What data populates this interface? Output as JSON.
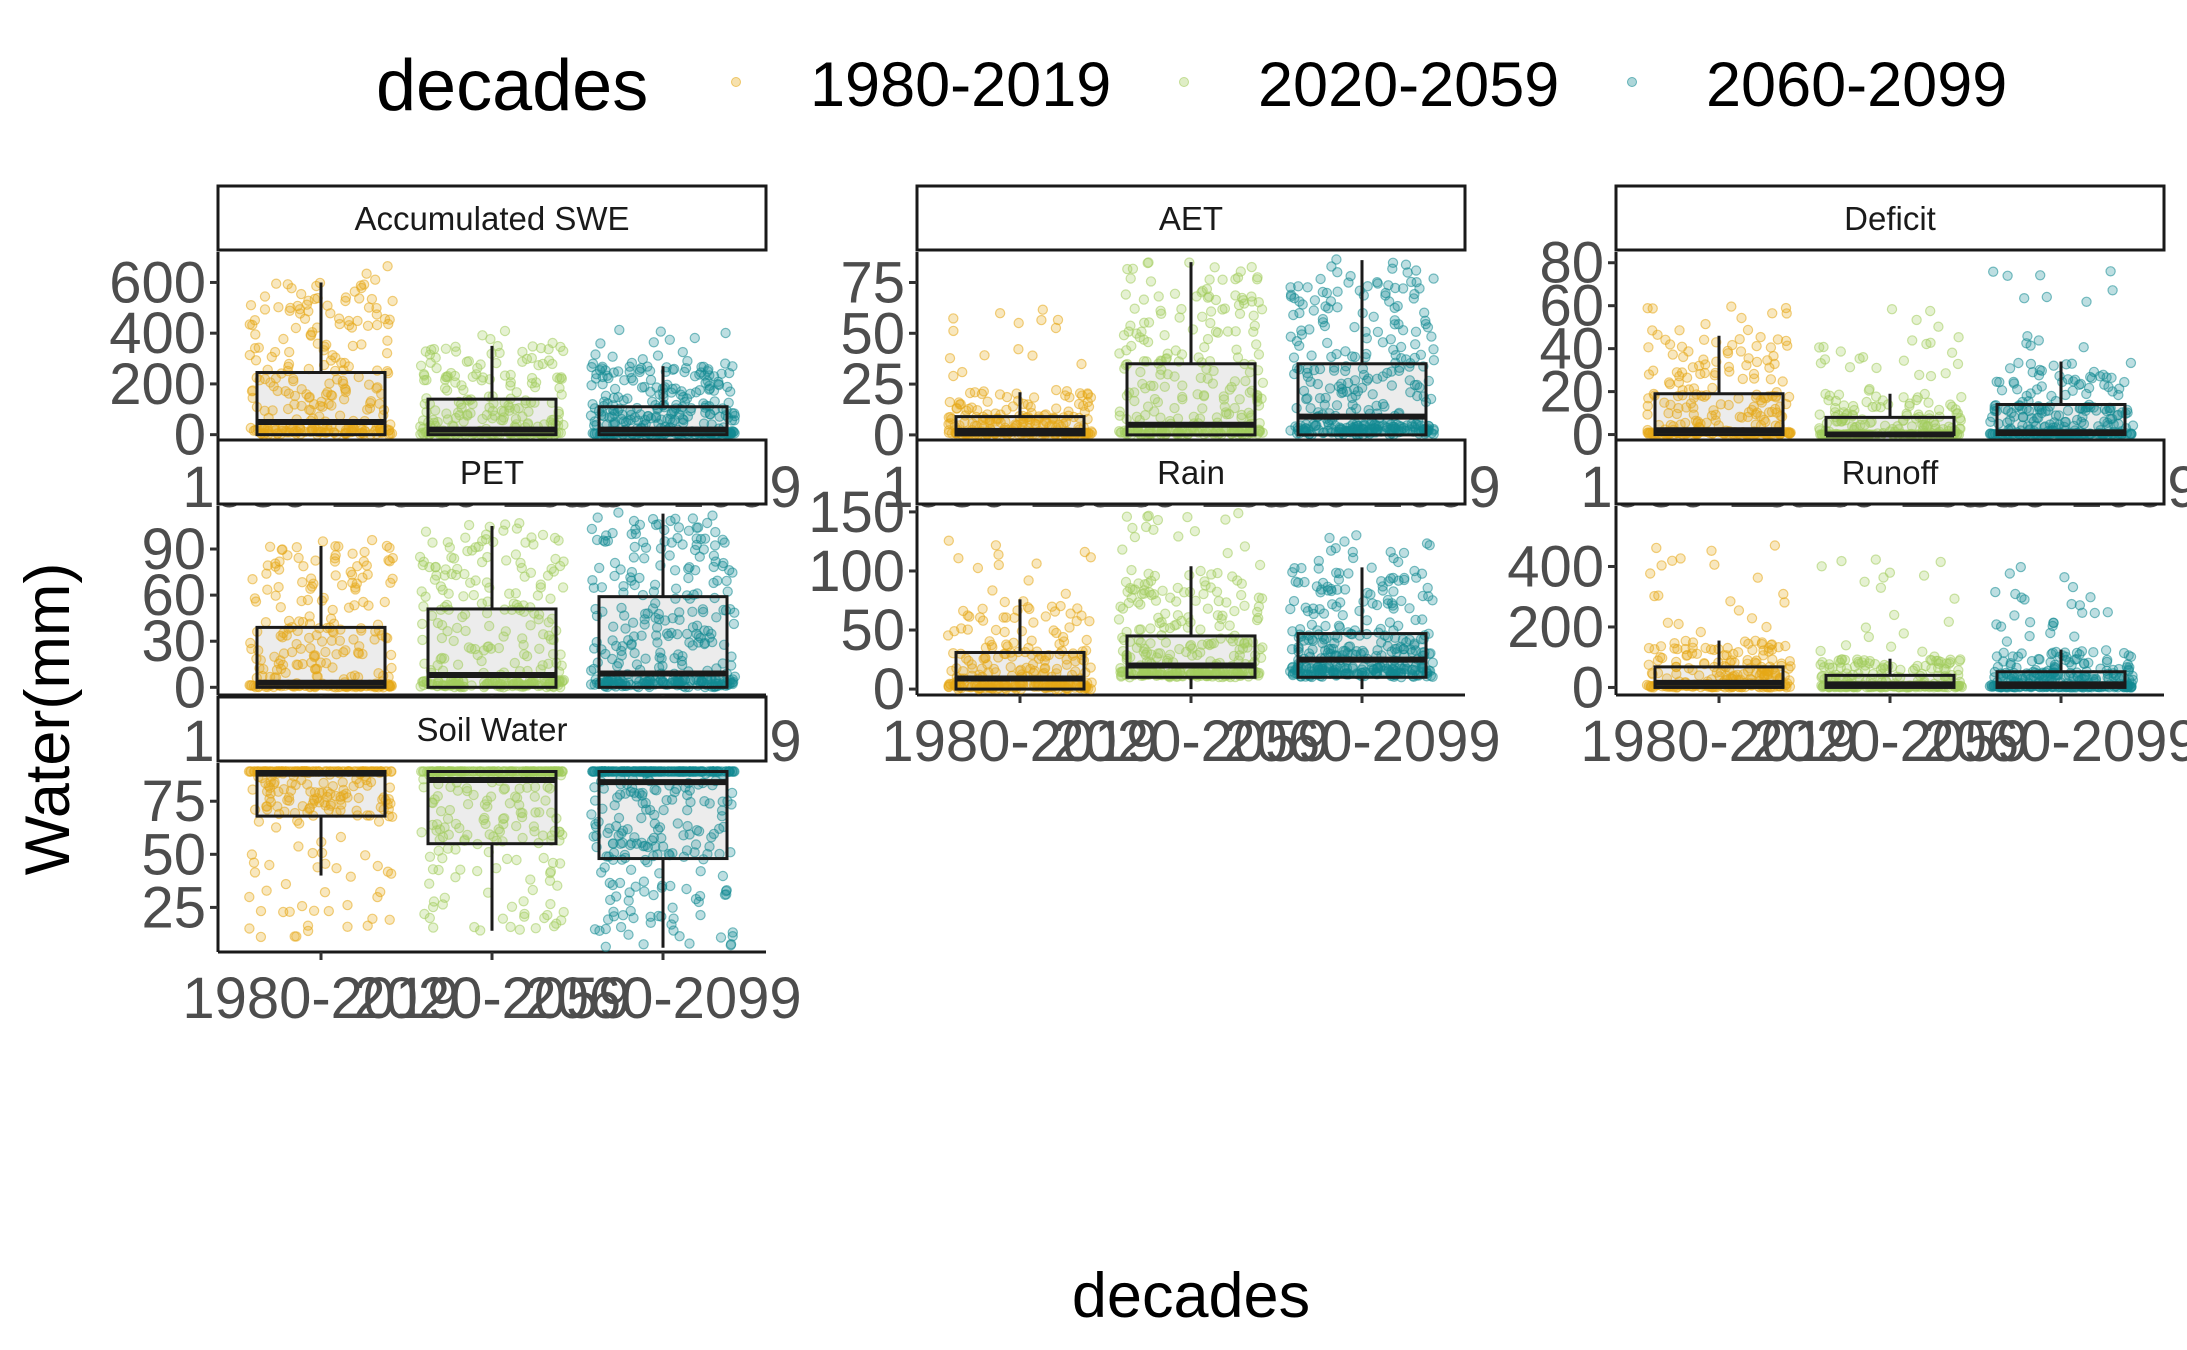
{
  "legend": {
    "title": "decades",
    "items": [
      {
        "label": "1980-2019",
        "color": "#E6A817"
      },
      {
        "label": "2020-2059",
        "color": "#A3CC5C"
      },
      {
        "label": "2060-2099",
        "color": "#138A92"
      }
    ]
  },
  "axis": {
    "x_title": "decades",
    "y_title": "Water(mm)"
  },
  "chart_data": {
    "type": "boxplot with jittered points, faceted",
    "categories": [
      "1980-2019",
      "2020-2059",
      "2060-2099"
    ],
    "box_fill": "#E5E5E5",
    "panels": [
      {
        "name": "Accumulated SWE",
        "ylim": [
          -25,
          720
        ],
        "yticks": [
          0,
          200,
          400,
          600
        ],
        "boxes": [
          {
            "lower": 0,
            "q1": 0,
            "median": 50,
            "q3": 245,
            "upper": 600,
            "point_max": 680,
            "point_count": 260
          },
          {
            "lower": 0,
            "q1": 0,
            "median": 20,
            "q3": 140,
            "upper": 350,
            "point_max": 420,
            "point_count": 260
          },
          {
            "lower": 0,
            "q1": 0,
            "median": 20,
            "q3": 110,
            "upper": 270,
            "point_max": 430,
            "point_count": 330
          }
        ]
      },
      {
        "name": "AET",
        "ylim": [
          -3,
          90
        ],
        "yticks": [
          0,
          25,
          50,
          75
        ],
        "boxes": [
          {
            "lower": 0,
            "q1": 0,
            "median": 2,
            "q3": 9,
            "upper": 21,
            "point_max": 65,
            "point_count": 240
          },
          {
            "lower": 0,
            "q1": 0,
            "median": 5,
            "q3": 35,
            "upper": 85,
            "point_max": 86,
            "point_count": 280
          },
          {
            "lower": 0,
            "q1": 0,
            "median": 9,
            "q3": 35,
            "upper": 86,
            "point_max": 87,
            "point_count": 330
          }
        ]
      },
      {
        "name": "Deficit",
        "ylim": [
          -3,
          85
        ],
        "yticks": [
          0,
          20,
          40,
          60,
          80
        ],
        "boxes": [
          {
            "lower": 0,
            "q1": 0,
            "median": 2,
            "q3": 19,
            "upper": 46,
            "point_max": 68,
            "point_count": 260
          },
          {
            "lower": 0,
            "q1": 0,
            "median": 0,
            "q3": 8,
            "upper": 19,
            "point_max": 60,
            "point_count": 220
          },
          {
            "lower": 0,
            "q1": 0,
            "median": 1,
            "q3": 14,
            "upper": 34,
            "point_max": 78,
            "point_count": 290
          }
        ]
      },
      {
        "name": "PET",
        "ylim": [
          -5,
          118
        ],
        "yticks": [
          0,
          30,
          60,
          90
        ],
        "boxes": [
          {
            "lower": 0,
            "q1": 0,
            "median": 3,
            "q3": 39,
            "upper": 92,
            "point_max": 99,
            "point_count": 260
          },
          {
            "lower": 0,
            "q1": 0,
            "median": 8,
            "q3": 51,
            "upper": 105,
            "point_max": 107,
            "point_count": 270
          },
          {
            "lower": 0,
            "q1": 0,
            "median": 9,
            "q3": 59,
            "upper": 113,
            "point_max": 115,
            "point_count": 320
          }
        ]
      },
      {
        "name": "Rain",
        "ylim": [
          -5,
          155
        ],
        "yticks": [
          0,
          50,
          100,
          150
        ],
        "boxes": [
          {
            "lower": 0,
            "q1": 0,
            "median": 9,
            "q3": 31,
            "upper": 76,
            "point_max": 128,
            "point_count": 270
          },
          {
            "lower": 0,
            "q1": 10,
            "median": 20,
            "q3": 45,
            "upper": 104,
            "point_max": 150,
            "point_count": 300
          },
          {
            "lower": 0,
            "q1": 10,
            "median": 25,
            "q3": 47,
            "upper": 103,
            "point_max": 132,
            "point_count": 340
          }
        ]
      },
      {
        "name": "Runoff",
        "ylim": [
          -25,
          600
        ],
        "yticks": [
          0,
          200,
          400
        ],
        "boxes": [
          {
            "lower": 0,
            "q1": 0,
            "median": 15,
            "q3": 68,
            "upper": 155,
            "point_max": 555,
            "point_count": 250
          },
          {
            "lower": 0,
            "q1": 0,
            "median": 10,
            "q3": 40,
            "upper": 95,
            "point_max": 440,
            "point_count": 240
          },
          {
            "lower": 0,
            "q1": 0,
            "median": 10,
            "q3": 52,
            "upper": 125,
            "point_max": 400,
            "point_count": 300
          }
        ]
      },
      {
        "name": "Soil Water",
        "ylim": [
          4,
          93
        ],
        "yticks": [
          25,
          50,
          75
        ],
        "boxes": [
          {
            "lower": 40,
            "q1": 68,
            "median": 88,
            "q3": 89,
            "upper": 89,
            "point_min": 8,
            "point_count": 260
          },
          {
            "lower": 14,
            "q1": 55,
            "median": 85,
            "q3": 89,
            "upper": 89,
            "point_min": 14,
            "point_count": 270
          },
          {
            "lower": 6,
            "q1": 48,
            "median": 84,
            "q3": 89,
            "upper": 89,
            "point_min": 6,
            "point_count": 340
          }
        ]
      }
    ]
  }
}
